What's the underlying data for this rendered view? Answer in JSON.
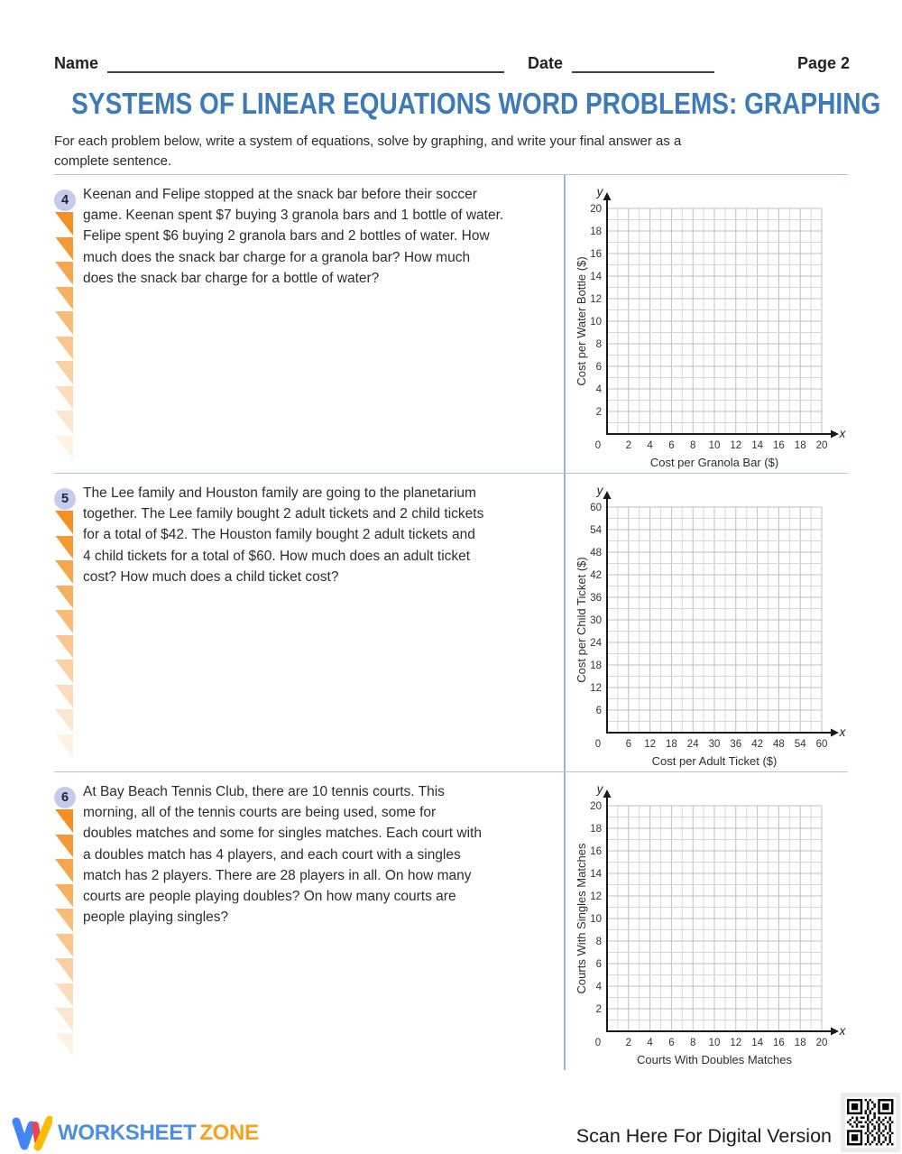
{
  "header": {
    "name_label": "Name",
    "date_label": "Date",
    "page_label": "Page 2"
  },
  "title": "SYSTEMS OF LINEAR EQUATIONS WORD PROBLEMS: GRAPHING",
  "instructions_lines": [
    "For each problem below, write a system of equations, solve by graphing, and write your final answer as a",
    "complete sentence."
  ],
  "problems": [
    {
      "number": "4",
      "lines": [
        "Keenan and Felipe stopped at the snack bar before their soccer",
        "game. Keenan spent $7 buying 3 granola bars and 1 bottle of water.",
        "Felipe spent $6 buying 2 granola bars and 2 bottles of water. How",
        "much does the snack bar charge for a granola bar? How much",
        "does the snack bar charge for a bottle of water?"
      ],
      "graph": {
        "type": "empty-grid",
        "ylabel": "Cost per Water Bottle ($)",
        "xlabel": "Cost per Granola Bar ($)",
        "y_axis_letter": "y",
        "x_axis_letter": "x",
        "origin_label": "0",
        "y_ticks": [
          2,
          4,
          6,
          8,
          10,
          12,
          14,
          16,
          18,
          20
        ],
        "x_ticks": [
          2,
          4,
          6,
          8,
          10,
          12,
          14,
          16,
          18,
          20
        ],
        "ylim": [
          0,
          20
        ],
        "xlim": [
          0,
          20
        ],
        "cells": 20
      }
    },
    {
      "number": "5",
      "lines": [
        "The Lee family and Houston family are going to the planetarium",
        "together. The Lee family bought 2 adult tickets and 2 child tickets",
        "for a total of $42. The Houston family bought 2 adult tickets and",
        "4 child tickets for a total of $60. How much does an adult ticket",
        "cost? How much does a child ticket cost?"
      ],
      "graph": {
        "type": "empty-grid",
        "ylabel": "Cost per Child Ticket ($)",
        "xlabel": "Cost per Adult Ticket ($)",
        "y_axis_letter": "y",
        "x_axis_letter": "x",
        "origin_label": "0",
        "y_ticks": [
          6,
          12,
          18,
          24,
          30,
          36,
          42,
          48,
          54,
          60
        ],
        "x_ticks": [
          6,
          12,
          18,
          24,
          30,
          36,
          42,
          48,
          54,
          60
        ],
        "ylim": [
          0,
          60
        ],
        "xlim": [
          0,
          60
        ],
        "cells": 20
      }
    },
    {
      "number": "6",
      "lines": [
        "At Bay Beach Tennis Club, there are 10 tennis courts. This",
        "morning, all of the tennis courts are being used, some for",
        "doubles matches and some for singles matches. Each court with",
        "a doubles match has 4 players, and each court with a singles",
        "match has 2 players. There are 28 players in all. On how many",
        "courts are people playing doubles? On how many courts are",
        "people playing singles?"
      ],
      "graph": {
        "type": "empty-grid",
        "ylabel": "Courts With Singles Matches",
        "xlabel": "Courts With Doubles Matches",
        "y_axis_letter": "y",
        "x_axis_letter": "x",
        "origin_label": "0",
        "y_ticks": [
          2,
          4,
          6,
          8,
          10,
          12,
          14,
          16,
          18,
          20
        ],
        "x_ticks": [
          2,
          4,
          6,
          8,
          10,
          12,
          14,
          16,
          18,
          20
        ],
        "ylim": [
          0,
          20
        ],
        "xlim": [
          0,
          20
        ],
        "cells": 20
      }
    }
  ],
  "footer": {
    "brand_word_1": "WORKSHEET",
    "brand_word_2": "ZONE",
    "scan_text": "Scan Here For Digital Version"
  },
  "colors": {
    "title-blue": "#3d7ab8",
    "badge-bg": "#c5cbed",
    "triangle-orange": "#f39022",
    "separator": "#b6c4de",
    "divider": "#9db2d4",
    "grid-minor": "#d7d7d7",
    "grid-major": "#bfbfbf",
    "axis-black": "#1a1a1a",
    "brand-blue": "#4a8fe2",
    "brand-orange": "#f6a21c"
  }
}
